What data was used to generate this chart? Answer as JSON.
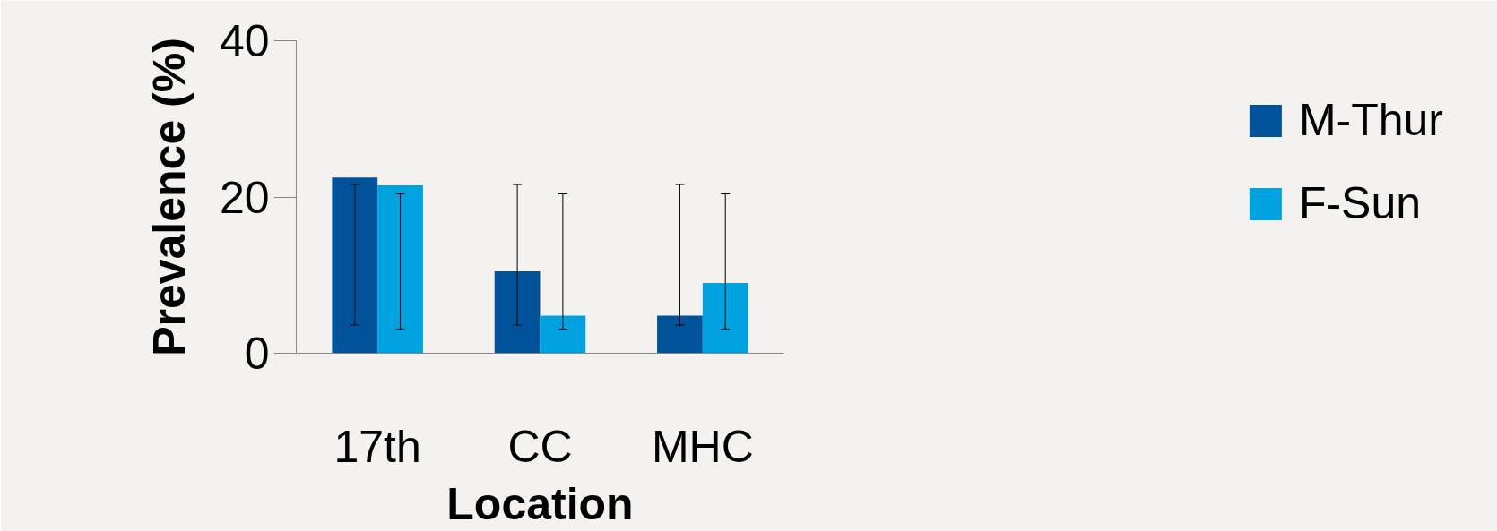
{
  "chart_data": {
    "type": "bar",
    "xlabel": "Location",
    "ylabel": "Prevalence (%)",
    "categories": [
      "17th",
      "CC",
      "MHC"
    ],
    "series": [
      {
        "name": "M-Thur",
        "color": "#00539b",
        "values": [
          22.5,
          10.5,
          4.8
        ],
        "errors": [
          [
            3.6,
            21.6
          ],
          [
            3.6,
            21.6
          ],
          [
            3.6,
            21.6
          ]
        ]
      },
      {
        "name": "F-Sun",
        "color": "#00a3e0",
        "values": [
          21.5,
          4.8,
          9.0
        ],
        "errors": [
          [
            3.1,
            20.4
          ],
          [
            3.1,
            20.4
          ],
          [
            3.1,
            20.4
          ]
        ]
      }
    ],
    "ylim": [
      0,
      40
    ],
    "yticks": [
      0,
      20,
      40
    ],
    "grid": false,
    "legend": "right"
  }
}
